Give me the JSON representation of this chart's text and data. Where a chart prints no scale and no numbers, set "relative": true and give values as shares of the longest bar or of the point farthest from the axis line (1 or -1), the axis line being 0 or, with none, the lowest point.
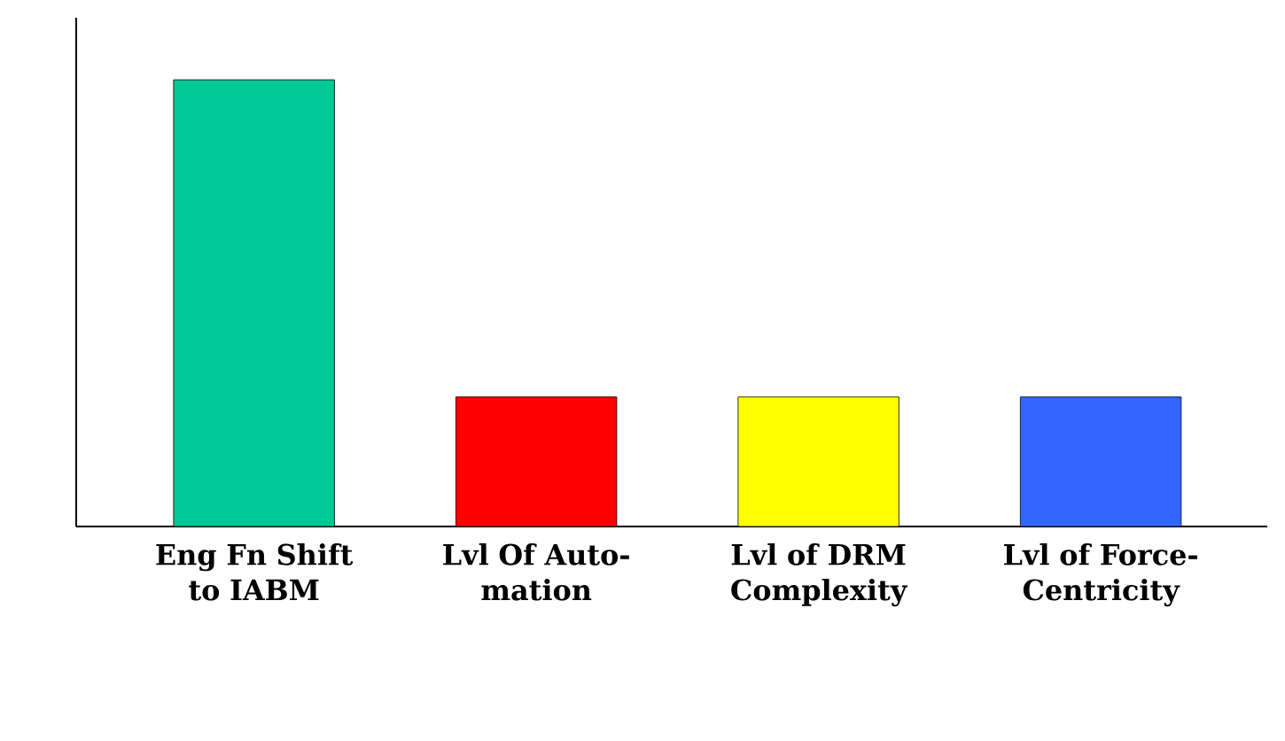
{
  "chart_data": {
    "type": "bar",
    "relative": true,
    "categories": [
      "Eng Fn Shift to IABM",
      "Lvl Of Auto-mation",
      "Lvl of DRM Complexity",
      "Lvl of Force-Centricity"
    ],
    "values": [
      1,
      0.29,
      0.29,
      0.29
    ],
    "colors": [
      "#00c896",
      "#ff0000",
      "#ffff00",
      "#3366ff"
    ]
  }
}
